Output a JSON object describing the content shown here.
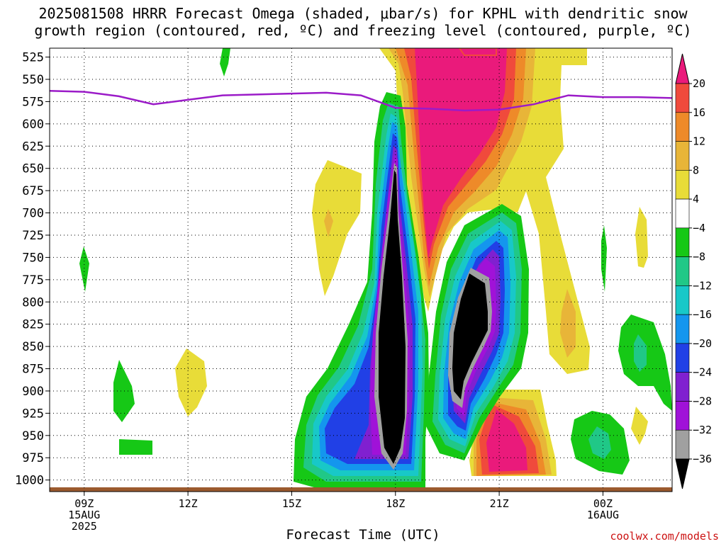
{
  "title_line1": "2025081508 HRRR Forecast Omega (shaded, μbar/s) for KPHL with dendritic snow",
  "title_line2": "growth region (contoured, red, ºC) and freezing level (contoured, purple, ºC)",
  "credit": "coolwx.com/models",
  "chart_data": {
    "type": "time-height",
    "title": "2025081508 HRRR Forecast Omega (shaded, μbar/s) for KPHL with dendritic snow growth region (contoured, red, ºC) and freezing level (contoured, purple, ºC)",
    "xlabel": "Forecast Time (UTC)",
    "ylabel": "",
    "y_ticks": [
      525,
      550,
      575,
      600,
      625,
      650,
      675,
      700,
      725,
      750,
      775,
      800,
      825,
      850,
      875,
      900,
      925,
      950,
      975,
      1000
    ],
    "x_ticks": [
      {
        "hour": 9,
        "lines": [
          "09Z",
          "15AUG",
          "2025"
        ]
      },
      {
        "hour": 12,
        "lines": [
          "12Z"
        ]
      },
      {
        "hour": 15,
        "lines": [
          "15Z"
        ]
      },
      {
        "hour": 18,
        "lines": [
          "18Z"
        ]
      },
      {
        "hour": 21,
        "lines": [
          "21Z"
        ]
      },
      {
        "hour": 24,
        "lines": [
          "00Z",
          "16AUG"
        ]
      }
    ],
    "xlim_hours": [
      8,
      26
    ],
    "ylim_mb": [
      515,
      1013
    ],
    "grid": true,
    "colorbar": {
      "labels": [
        20,
        16,
        12,
        8,
        4,
        -4,
        -8,
        -12,
        -16,
        -20,
        -24,
        -28,
        -32,
        -36
      ],
      "colors": [
        "#ea1a7b",
        "#f04a3c",
        "#ee8a29",
        "#e8b538",
        "#e8dc38",
        "#ffffff",
        "#16c816",
        "#20c887",
        "#18c8c8",
        "#1496ee",
        "#2140e6",
        "#8020d0",
        "#a012d8",
        "#a0a0a0",
        "#000000"
      ]
    },
    "freezing_level": [
      {
        "hour": 8.0,
        "mb": 563
      },
      {
        "hour": 9.0,
        "mb": 564
      },
      {
        "hour": 10.0,
        "mb": 569
      },
      {
        "hour": 11.0,
        "mb": 578
      },
      {
        "hour": 12.0,
        "mb": 573
      },
      {
        "hour": 13.0,
        "mb": 568
      },
      {
        "hour": 14.0,
        "mb": 567
      },
      {
        "hour": 15.0,
        "mb": 566
      },
      {
        "hour": 16.0,
        "mb": 565
      },
      {
        "hour": 17.0,
        "mb": 568
      },
      {
        "hour": 18.0,
        "mb": 582
      },
      {
        "hour": 19.0,
        "mb": 583
      },
      {
        "hour": 20.0,
        "mb": 585
      },
      {
        "hour": 21.0,
        "mb": 584
      },
      {
        "hour": 22.0,
        "mb": 578
      },
      {
        "hour": 23.0,
        "mb": 568
      },
      {
        "hour": 24.0,
        "mb": 570
      },
      {
        "hour": 25.0,
        "mb": 570
      },
      {
        "hour": 26.0,
        "mb": 571
      }
    ]
  }
}
